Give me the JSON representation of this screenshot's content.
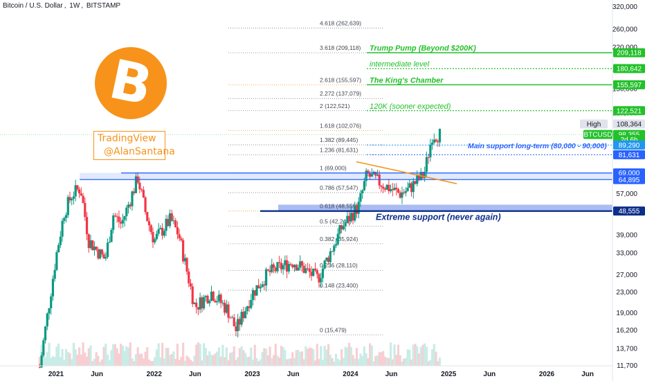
{
  "header": {
    "symbol_name": "Bitcoin / U.S. Dollar",
    "interval": "1W",
    "exchange": "BITSTAMP"
  },
  "logo": {
    "icon": "bitcoin-logo-icon",
    "glyph": "B",
    "color": "#f7931a"
  },
  "watermark": {
    "line1": "TradingView",
    "line2": "@AlanSantana"
  },
  "colors": {
    "up": "#089981",
    "down": "#f23645",
    "green": "#22c12a",
    "blue": "#2962ff",
    "orange": "#f7931a"
  },
  "chart_data": {
    "type": "candlestick",
    "symbol": "BTCUSD",
    "y_scale": "log",
    "ylim": [
      10800,
      340000
    ],
    "x_ticks": [
      "2021",
      "Jun",
      "2022",
      "Jun",
      "2023",
      "Jun",
      "2024",
      "Jun",
      "2025",
      "Jun",
      "2026",
      "Jun"
    ],
    "y_ticks": [
      "320,000",
      "260,000",
      "220,000",
      "180,000",
      "150,000",
      "120,000",
      "100,000",
      "82,000",
      "69,000",
      "57,000",
      "48,000",
      "39,000",
      "33,000",
      "27,000",
      "23,000",
      "19,000",
      "16,200",
      "13,700",
      "11,700"
    ],
    "weekly_path": [
      {
        "date": "2020-11",
        "price": 11500
      },
      {
        "date": "2021-01",
        "price": 32000
      },
      {
        "date": "2021-02",
        "price": 48000
      },
      {
        "date": "2021-03",
        "price": 57000
      },
      {
        "date": "2021-04",
        "price": 60000
      },
      {
        "date": "2021-05",
        "price": 37000
      },
      {
        "date": "2021-07",
        "price": 31000
      },
      {
        "date": "2021-08",
        "price": 47000
      },
      {
        "date": "2021-09",
        "price": 43000
      },
      {
        "date": "2021-11",
        "price": 66000
      },
      {
        "date": "2021-12",
        "price": 47000
      },
      {
        "date": "2022-01",
        "price": 37000
      },
      {
        "date": "2022-03",
        "price": 45000
      },
      {
        "date": "2022-04",
        "price": 39000
      },
      {
        "date": "2022-06",
        "price": 20000
      },
      {
        "date": "2022-08",
        "price": 23000
      },
      {
        "date": "2022-10",
        "price": 19500
      },
      {
        "date": "2022-11",
        "price": 16200
      },
      {
        "date": "2023-01",
        "price": 22800
      },
      {
        "date": "2023-03",
        "price": 27500
      },
      {
        "date": "2023-06",
        "price": 30500
      },
      {
        "date": "2023-09",
        "price": 26000
      },
      {
        "date": "2023-12",
        "price": 42000
      },
      {
        "date": "2024-02",
        "price": 51000
      },
      {
        "date": "2024-03",
        "price": 68000
      },
      {
        "date": "2024-05",
        "price": 62000
      },
      {
        "date": "2024-07",
        "price": 57000
      },
      {
        "date": "2024-08",
        "price": 59000
      },
      {
        "date": "2024-10",
        "price": 68000
      },
      {
        "date": "2024-11",
        "price": 98000
      },
      {
        "date": "2024-12",
        "price": 98355
      }
    ],
    "fib_levels": [
      {
        "ratio": "4.618",
        "price": 262639,
        "label": "4.618 (262,639)",
        "color": "#787b86"
      },
      {
        "ratio": "3.618",
        "price": 209118,
        "label": "3.618 (209,118)",
        "color": "#787b86"
      },
      {
        "ratio": "2.618",
        "price": 155597,
        "label": "2.618 (155,597)",
        "color": "#f7931a"
      },
      {
        "ratio": "2.272",
        "price": 137079,
        "label": "2.272 (137,079)",
        "color": "#787b86"
      },
      {
        "ratio": "2",
        "price": 122521,
        "label": "2 (122,521)",
        "color": "#787b86"
      },
      {
        "ratio": "1.618",
        "price": 102076,
        "label": "1.618 (102,076)",
        "color": "#f7931a"
      },
      {
        "ratio": "1.382",
        "price": 89445,
        "label": "1.382 (89,445)",
        "color": "#787b86"
      },
      {
        "ratio": "1.236",
        "price": 81631,
        "label": "1.236 (81,631)",
        "color": "#787b86"
      },
      {
        "ratio": "1",
        "price": 69000,
        "label": "1 (69,000)",
        "color": "#787b86"
      },
      {
        "ratio": "0.786",
        "price": 57547,
        "label": "0.786 (57,547)",
        "color": "#787b86"
      },
      {
        "ratio": "0.618",
        "price": 48555,
        "label": "0.618 (48,555)",
        "color": "#f7931a"
      },
      {
        "ratio": "0.5",
        "price": 42240,
        "label": "0.5 (42,240)",
        "color": "#787b86"
      },
      {
        "ratio": "0.382",
        "price": 35924,
        "label": "0.382 (35,924)",
        "color": "#787b86"
      },
      {
        "ratio": "0.236",
        "price": 28110,
        "label": "0.236 (28,110)",
        "color": "#787b86"
      },
      {
        "ratio": "0.148",
        "price": 23400,
        "label": "0.148 (23,400)",
        "color": "#787b86"
      },
      {
        "ratio": "0",
        "price": 15479,
        "label": "0 (15,479)",
        "color": "#787b86"
      }
    ],
    "annotations": [
      {
        "text": "Trump Pump (Beyond $200K)",
        "price": 209118,
        "color": "#22c12a",
        "bold": true
      },
      {
        "text": "intermediate level",
        "price": 180642,
        "color": "#22c12a",
        "bold": false
      },
      {
        "text": "The King's Chamber",
        "price": 155597,
        "color": "#22c12a",
        "bold": true
      },
      {
        "text": "120K (sooner expected)",
        "price": 122521,
        "color": "#22c12a",
        "bold": false
      },
      {
        "text": "Main support long-term (80,000 - 90,000)",
        "price": 85000,
        "color": "#2962ff",
        "bold": true
      },
      {
        "text": "Extreme support (never again)",
        "price": 48555,
        "color": "#0d2f8a",
        "bold": true
      }
    ],
    "price_badges": [
      {
        "label": "209,118",
        "price": 209118,
        "bg": "#22c12a",
        "fg": "#ffffff"
      },
      {
        "label": "180,642",
        "price": 180642,
        "bg": "#22c12a",
        "fg": "#ffffff"
      },
      {
        "label": "155,597",
        "price": 155597,
        "bg": "#22c12a",
        "fg": "#ffffff"
      },
      {
        "label": "122,521",
        "price": 122521,
        "bg": "#22c12a",
        "fg": "#ffffff"
      },
      {
        "label": "High",
        "price": 108364,
        "bg": "#e0e3eb",
        "fg": "#131722"
      },
      {
        "label": "108,364",
        "price": 108364,
        "bg": "#e0e3eb",
        "fg": "#131722"
      },
      {
        "label": "BTCUSD",
        "price": 98355,
        "bg": "#22c12a",
        "fg": "#ffffff"
      },
      {
        "label": "98,355",
        "price": 98355,
        "bg": "#22c12a",
        "fg": "#ffffff"
      },
      {
        "label": "2d 6h",
        "price": 93800,
        "bg": "#22c12a",
        "fg": "#ffffff"
      },
      {
        "label": "89,290",
        "price": 89290,
        "bg": "#2196f3",
        "fg": "#ffffff"
      },
      {
        "label": "81,631",
        "price": 81631,
        "bg": "#2962ff",
        "fg": "#ffffff"
      },
      {
        "label": "69,000",
        "price": 69000,
        "bg": "#2962ff",
        "fg": "#ffffff"
      },
      {
        "label": "64,895",
        "price": 64895,
        "bg": "#2962ff",
        "fg": "#ffffff"
      },
      {
        "label": "48,555",
        "price": 48555,
        "bg": "#0d2f8a",
        "fg": "#ffffff"
      }
    ]
  }
}
